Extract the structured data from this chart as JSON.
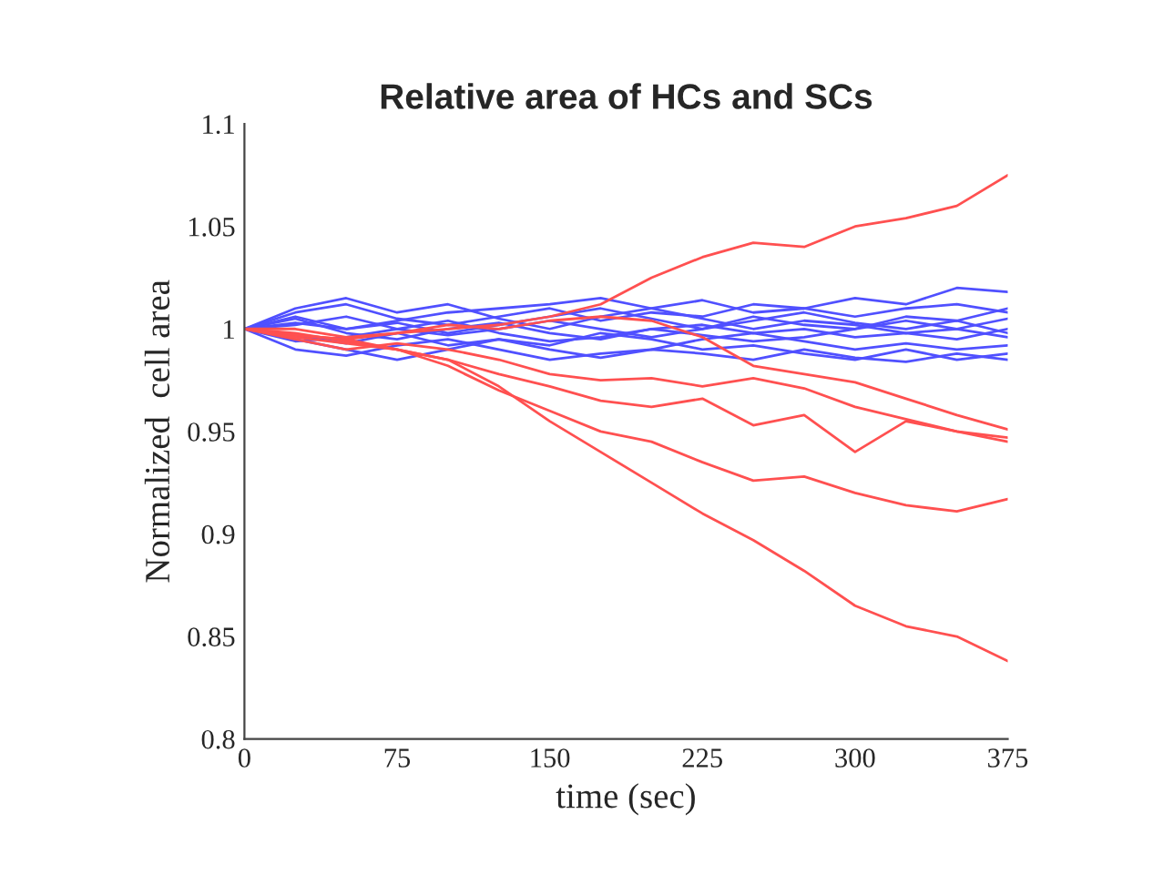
{
  "chart_data": {
    "type": "line",
    "title": "Relative area of HCs and SCs",
    "xlabel": "time (sec)",
    "ylabel": "Normalized  cell area",
    "x": [
      0,
      25,
      50,
      75,
      100,
      125,
      150,
      175,
      200,
      225,
      250,
      275,
      300,
      325,
      350,
      375
    ],
    "xlim": [
      0,
      375
    ],
    "xticks": [
      0,
      75,
      150,
      225,
      300,
      375
    ],
    "ylim": [
      0.8,
      1.1
    ],
    "yticks": [
      0.8,
      0.85,
      0.9,
      0.95,
      1,
      1.05,
      1.1
    ],
    "grid": false,
    "marker": "none",
    "line_style": "solid",
    "series": [
      {
        "color": "#5050ff",
        "values": [
          1,
          1.008,
          1.012,
          1.005,
          1.002,
          1.006,
          1.01,
          1.004,
          1.008,
          1.006,
          1.012,
          1.01,
          1.015,
          1.012,
          1.02,
          1.018
        ]
      },
      {
        "color": "#5050ff",
        "values": [
          1,
          0.995,
          0.99,
          0.985,
          0.99,
          0.995,
          0.992,
          0.998,
          0.995,
          0.99,
          0.992,
          0.988,
          0.985,
          0.99,
          0.985,
          0.988
        ]
      },
      {
        "color": "#5050ff",
        "values": [
          1,
          1.003,
          1.0,
          1.004,
          1.008,
          1.01,
          1.012,
          1.015,
          1.01,
          1.005,
          1.0,
          1.004,
          1.002,
          0.998,
          1.0,
          1.005
        ]
      },
      {
        "color": "#5050ff",
        "values": [
          1,
          0.99,
          0.987,
          0.992,
          0.995,
          0.99,
          0.985,
          0.988,
          0.99,
          0.995,
          0.998,
          0.994,
          0.99,
          0.993,
          0.99,
          0.992
        ]
      },
      {
        "color": "#5050ff",
        "values": [
          1,
          1.005,
          0.998,
          0.995,
          1.0,
          1.003,
          0.998,
          0.995,
          1.0,
          1.002,
          0.998,
          1.0,
          0.996,
          0.998,
          0.995,
          1.0
        ]
      },
      {
        "color": "#5050ff",
        "values": [
          1,
          1.01,
          1.015,
          1.008,
          1.012,
          1.005,
          1.0,
          1.006,
          1.01,
          1.014,
          1.008,
          1.01,
          1.006,
          1.01,
          1.012,
          1.008
        ]
      },
      {
        "color": "#5050ff",
        "values": [
          1,
          0.997,
          0.993,
          0.998,
          0.992,
          0.995,
          0.99,
          0.986,
          0.99,
          0.988,
          0.985,
          0.99,
          0.986,
          0.984,
          0.988,
          0.985
        ]
      },
      {
        "color": "#5050ff",
        "values": [
          1,
          1.002,
          1.006,
          1.0,
          0.997,
          1.0,
          1.004,
          1.0,
          0.996,
          1.0,
          1.004,
          1.008,
          1.003,
          1.0,
          1.004,
          0.998
        ]
      },
      {
        "color": "#5050ff",
        "values": [
          1,
          0.994,
          0.996,
          1.0,
          1.004,
          0.998,
          0.994,
          0.996,
          1.0,
          0.997,
          0.994,
          0.996,
          1.0,
          1.004,
          1.0,
          0.996
        ]
      },
      {
        "color": "#5050ff",
        "values": [
          1,
          1.006,
          1.0,
          1.003,
          0.998,
          1.002,
          1.006,
          1.01,
          1.005,
          1.0,
          1.006,
          1.002,
          1.0,
          1.006,
          1.004,
          1.01
        ]
      },
      {
        "color": "#ff5050",
        "values": [
          1,
          0.997,
          0.995,
          0.998,
          1.0,
          1.002,
          1.006,
          1.012,
          1.025,
          1.035,
          1.042,
          1.04,
          1.05,
          1.054,
          1.06,
          1.075
        ]
      },
      {
        "color": "#ff5050",
        "values": [
          1,
          1.0,
          0.996,
          0.998,
          1.002,
          1.0,
          1.004,
          1.006,
          1.004,
          0.996,
          0.982,
          0.978,
          0.974,
          0.966,
          0.958,
          0.951
        ]
      },
      {
        "color": "#ff5050",
        "values": [
          1,
          0.995,
          0.99,
          0.993,
          0.99,
          0.985,
          0.978,
          0.975,
          0.976,
          0.972,
          0.976,
          0.971,
          0.962,
          0.956,
          0.95,
          0.945
        ]
      },
      {
        "color": "#ff5050",
        "values": [
          1,
          0.998,
          0.994,
          0.99,
          0.985,
          0.978,
          0.972,
          0.965,
          0.962,
          0.966,
          0.953,
          0.958,
          0.94,
          0.955,
          0.95,
          0.947
        ]
      },
      {
        "color": "#ff5050",
        "values": [
          1,
          0.997,
          0.995,
          0.99,
          0.982,
          0.97,
          0.96,
          0.95,
          0.945,
          0.935,
          0.926,
          0.928,
          0.92,
          0.914,
          0.911,
          0.917
        ]
      },
      {
        "color": "#ff5050",
        "values": [
          1,
          0.996,
          0.993,
          0.99,
          0.985,
          0.972,
          0.955,
          0.94,
          0.925,
          0.91,
          0.897,
          0.882,
          0.865,
          0.855,
          0.85,
          0.838
        ]
      }
    ]
  }
}
